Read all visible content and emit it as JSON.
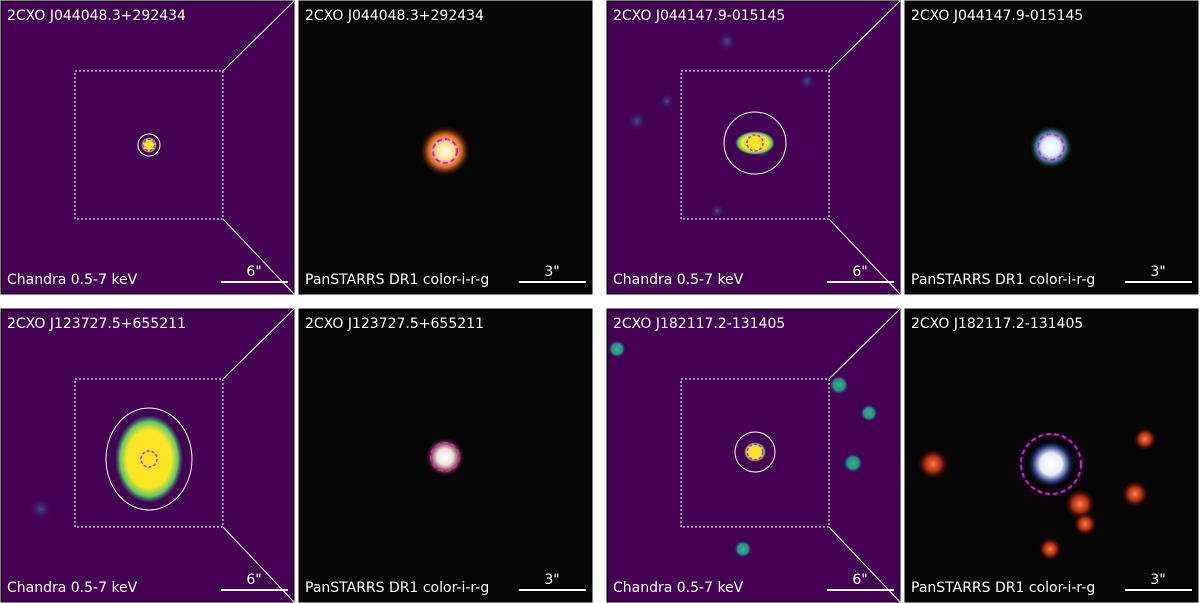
{
  "panels": [
    {
      "title": "2CXO J044048.3+292434",
      "caption": "Chandra 0.5-7 keV",
      "scale": "6\""
    },
    {
      "title": "2CXO J044048.3+292434",
      "caption": "PanSTARRS DR1 color-i-r-g",
      "scale": "3\""
    },
    {
      "title": "2CXO J044147.9-015145",
      "caption": "Chandra 0.5-7 keV",
      "scale": "6\""
    },
    {
      "title": "2CXO J044147.9-015145",
      "caption": "PanSTARRS DR1 color-i-r-g",
      "scale": "3\""
    },
    {
      "title": "2CXO J123727.5+655211",
      "caption": "Chandra 0.5-7 keV",
      "scale": "6\""
    },
    {
      "title": "2CXO J123727.5+655211",
      "caption": "PanSTARRS DR1 color-i-r-g",
      "scale": "3\""
    },
    {
      "title": "2CXO J182117.2-131405",
      "caption": "Chandra 0.5-7 keV",
      "scale": "6\""
    },
    {
      "title": "2CXO J182117.2-131405",
      "caption": "PanSTARRS DR1 color-i-r-g",
      "scale": "3\""
    }
  ]
}
